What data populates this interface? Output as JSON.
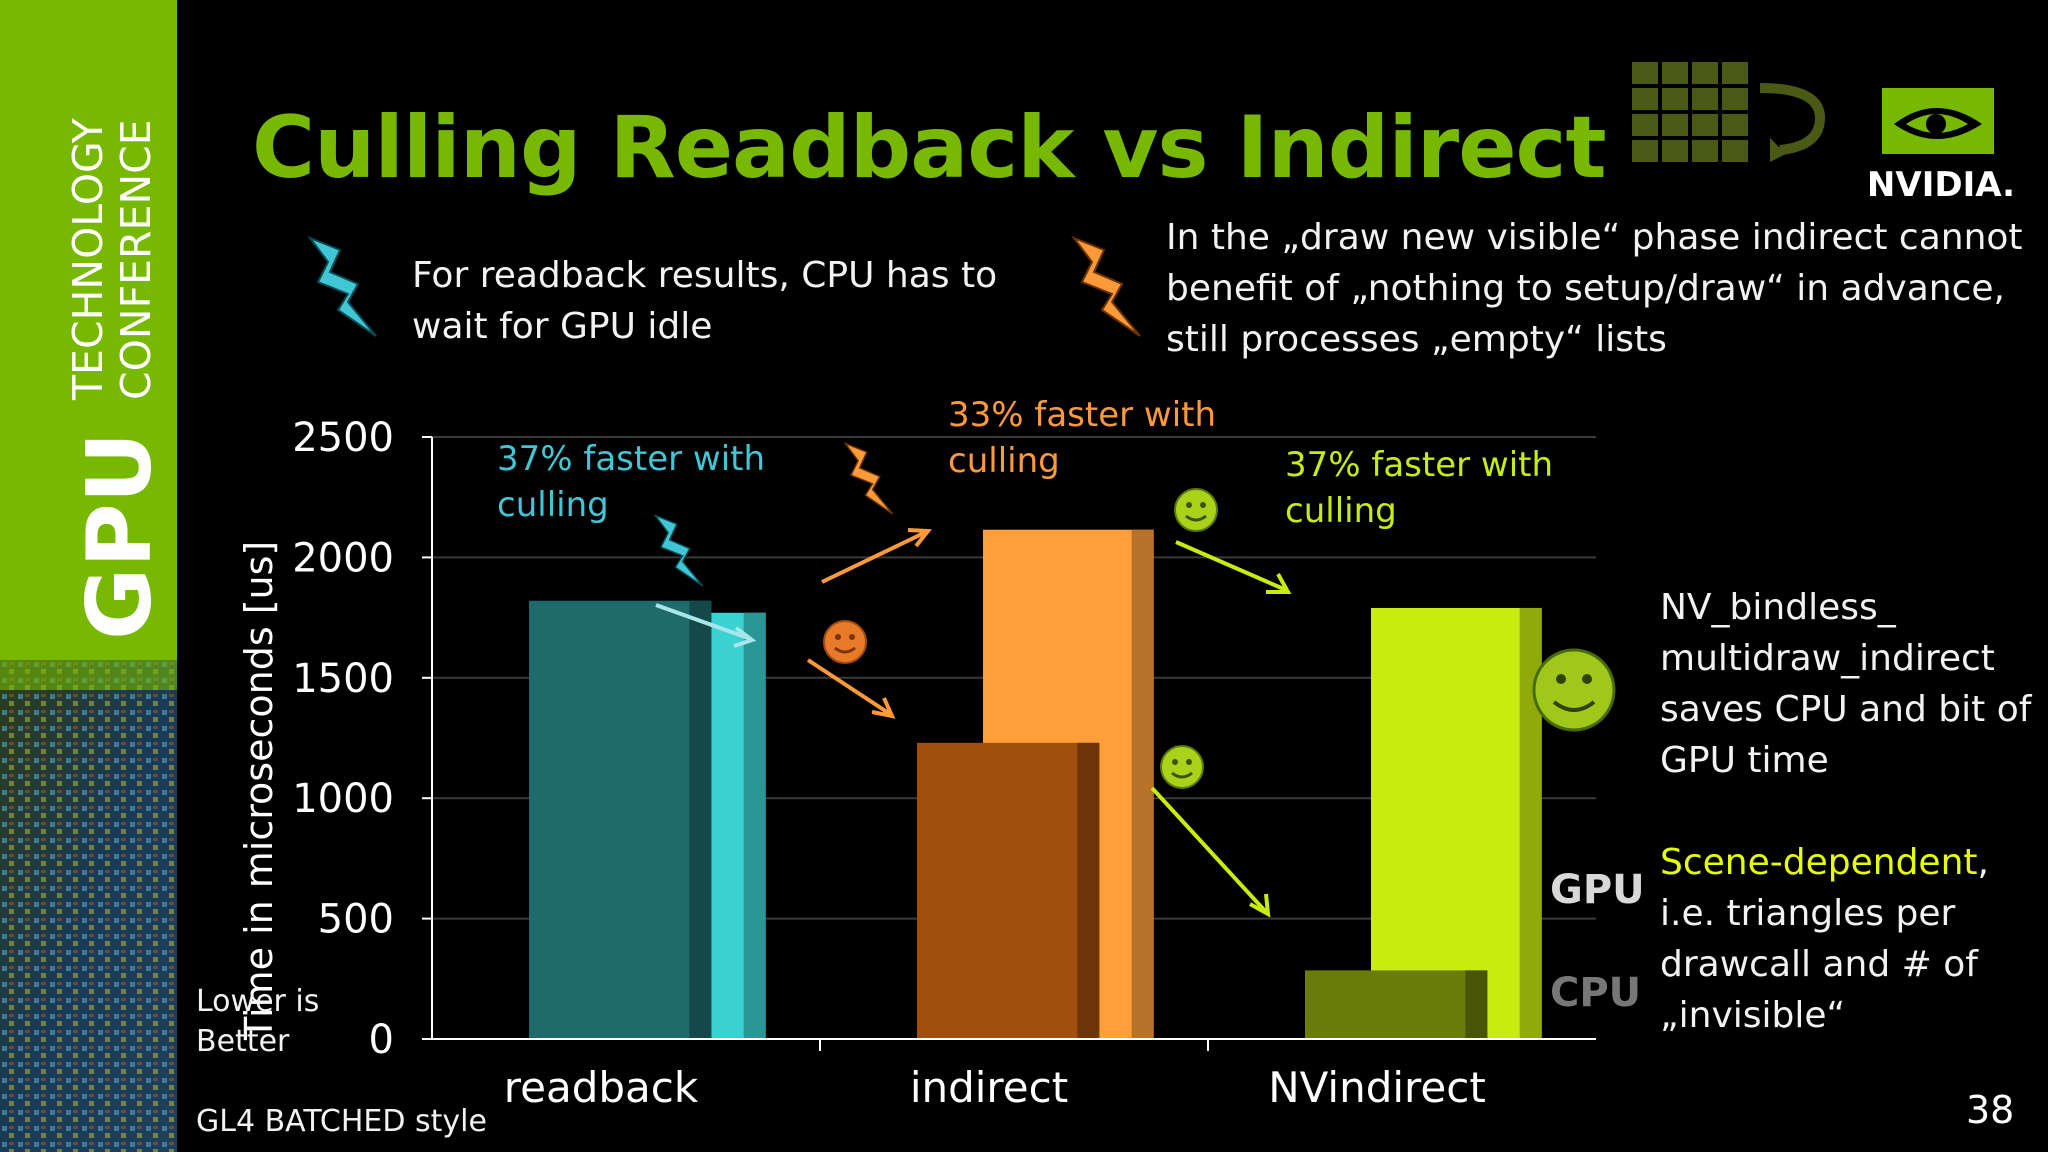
{
  "slide": {
    "title": "Culling Readback vs Indirect",
    "sidebar": {
      "brand_main": "GPU",
      "brand_line1": "TECHNOLOGY",
      "brand_line2": "CONFERENCE"
    },
    "logo_text": "NVIDIA.",
    "note_left": {
      "line1": "For readback results, CPU has to",
      "line2": "wait for GPU idle"
    },
    "note_right": {
      "line1": "In the „draw new visible“ phase indirect cannot",
      "line2": "benefit of „nothing to setup/draw“ in advance,",
      "line3": "still processes „empty“ lists"
    },
    "side_text": {
      "line1": "NV_bindless_",
      "line2": "multidraw_indirect",
      "line3": "saves CPU and bit of",
      "line4": "GPU time",
      "line5_highlight": "Scene-dependent",
      "line5_rest": ",",
      "line6": "i.e. triangles per",
      "line7": "drawcall and # of",
      "line8": "„invisible“"
    },
    "footer_style": "GL4 BATCHED style",
    "page_number": "38",
    "colors": {
      "brand_green": "#76b900",
      "readback_cpu": "#1f6b6b",
      "readback_gpu": "#3ad1d1",
      "indirect_cpu": "#a0500c",
      "indirect_gpu": "#ff9f3a",
      "nvindirect_cpu": "#6a7d0a",
      "nvindirect_gpu": "#c8ec10",
      "annotation_teal": "#41c6d6",
      "annotation_orange": "#ff9a3a",
      "annotation_lime": "#c8ec10"
    }
  },
  "chart_data": {
    "type": "bar",
    "categories": [
      "readback",
      "indirect",
      "NVindirect"
    ],
    "series": [
      {
        "name": "CPU",
        "values": [
          1820,
          1230,
          285
        ]
      },
      {
        "name": "GPU",
        "values": [
          1770,
          2115,
          1790
        ]
      }
    ],
    "ylabel": "Time in microseconds [us]",
    "ylim": [
      0,
      2500
    ],
    "yticks": [
      0,
      500,
      1000,
      1500,
      2000,
      2500
    ],
    "grid": true,
    "legend_placement": "right",
    "lower_is_better": "Lower is\nBetter",
    "annotations": [
      {
        "text": "37% faster with\nculling",
        "category": "readback",
        "icon": "lightning-teal"
      },
      {
        "text": "33% faster with\nculling",
        "category": "indirect",
        "icon": "lightning-orange"
      },
      {
        "text": "37% faster with\nculling",
        "category": "NVindirect",
        "icon": "smiley-lime"
      }
    ]
  }
}
